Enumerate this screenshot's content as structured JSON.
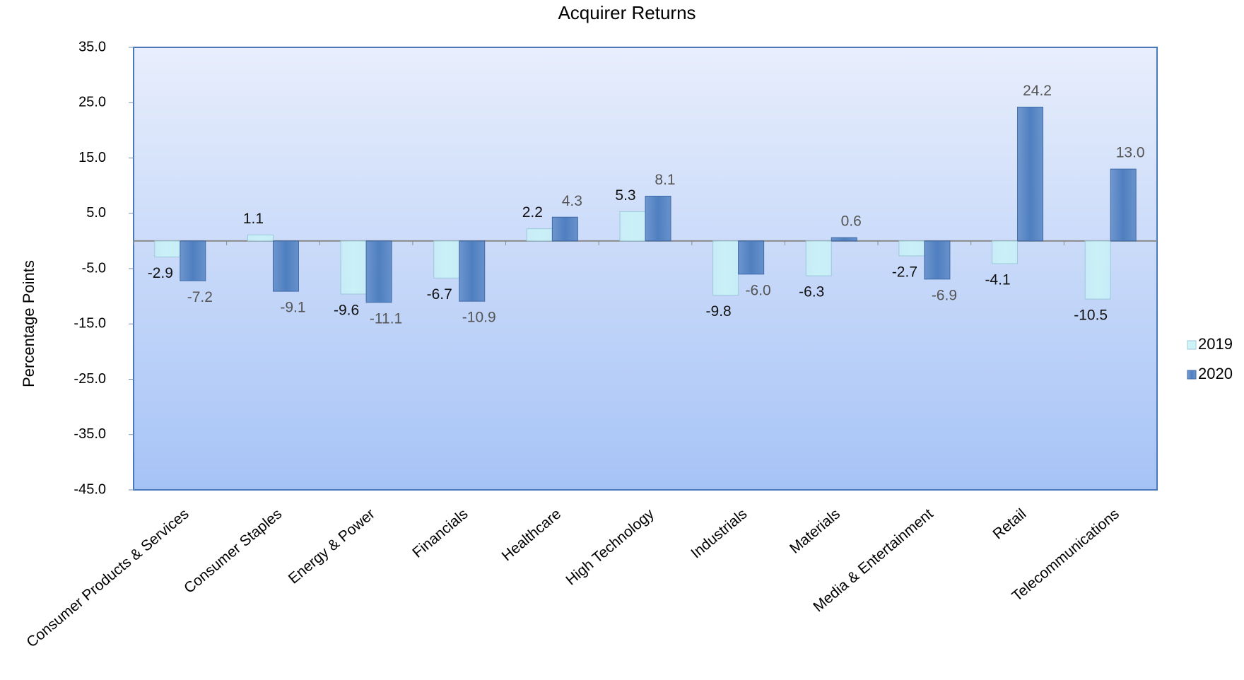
{
  "chart_data": {
    "type": "bar",
    "title": "Acquirer Returns",
    "y_label": "Percentage Points",
    "categories": [
      "Consumer Products & Services",
      "Consumer Staples",
      "Energy & Power",
      "Financials",
      "Healthcare",
      "High Technology",
      "Industrials",
      "Materials",
      "Media & Entertainment",
      "Retail",
      "Telecommunications"
    ],
    "series": [
      {
        "name": "2019",
        "color": "#c9f1f7",
        "values": [
          -2.9,
          1.1,
          -9.6,
          -6.7,
          2.2,
          5.3,
          -9.8,
          -6.3,
          -2.7,
          -4.1,
          -10.5
        ],
        "value_labels": [
          "-2.9",
          "1.1",
          "-9.6",
          "-6.7",
          "2.2",
          "5.3",
          "-9.8",
          "-6.3",
          "-2.7",
          "-4.1",
          "-10.5"
        ]
      },
      {
        "name": "2020",
        "color": "#4f7fc0",
        "values": [
          -7.2,
          -9.1,
          -11.1,
          -10.9,
          4.3,
          8.1,
          -6.0,
          0.6,
          -6.9,
          24.2,
          13.0
        ],
        "value_labels": [
          "-7.2",
          "-9.1",
          "-11.1",
          "-10.9",
          "4.3",
          "8.1",
          "-6.0",
          "0.6",
          "-6.9",
          "24.2",
          "13.0"
        ]
      }
    ],
    "ylim": [
      -45,
      35
    ],
    "yticks": [
      {
        "value": -45,
        "label": "-45.0"
      },
      {
        "value": -35,
        "label": "-35.0"
      },
      {
        "value": -25,
        "label": "-25.0"
      },
      {
        "value": -15,
        "label": "-15.0"
      },
      {
        "value": -5,
        "label": "-5.0"
      },
      {
        "value": 5,
        "label": "5.0"
      },
      {
        "value": 15,
        "label": "15.0"
      },
      {
        "value": 25,
        "label": "25.0"
      },
      {
        "value": 35,
        "label": "35.0"
      }
    ],
    "legend": "right"
  }
}
